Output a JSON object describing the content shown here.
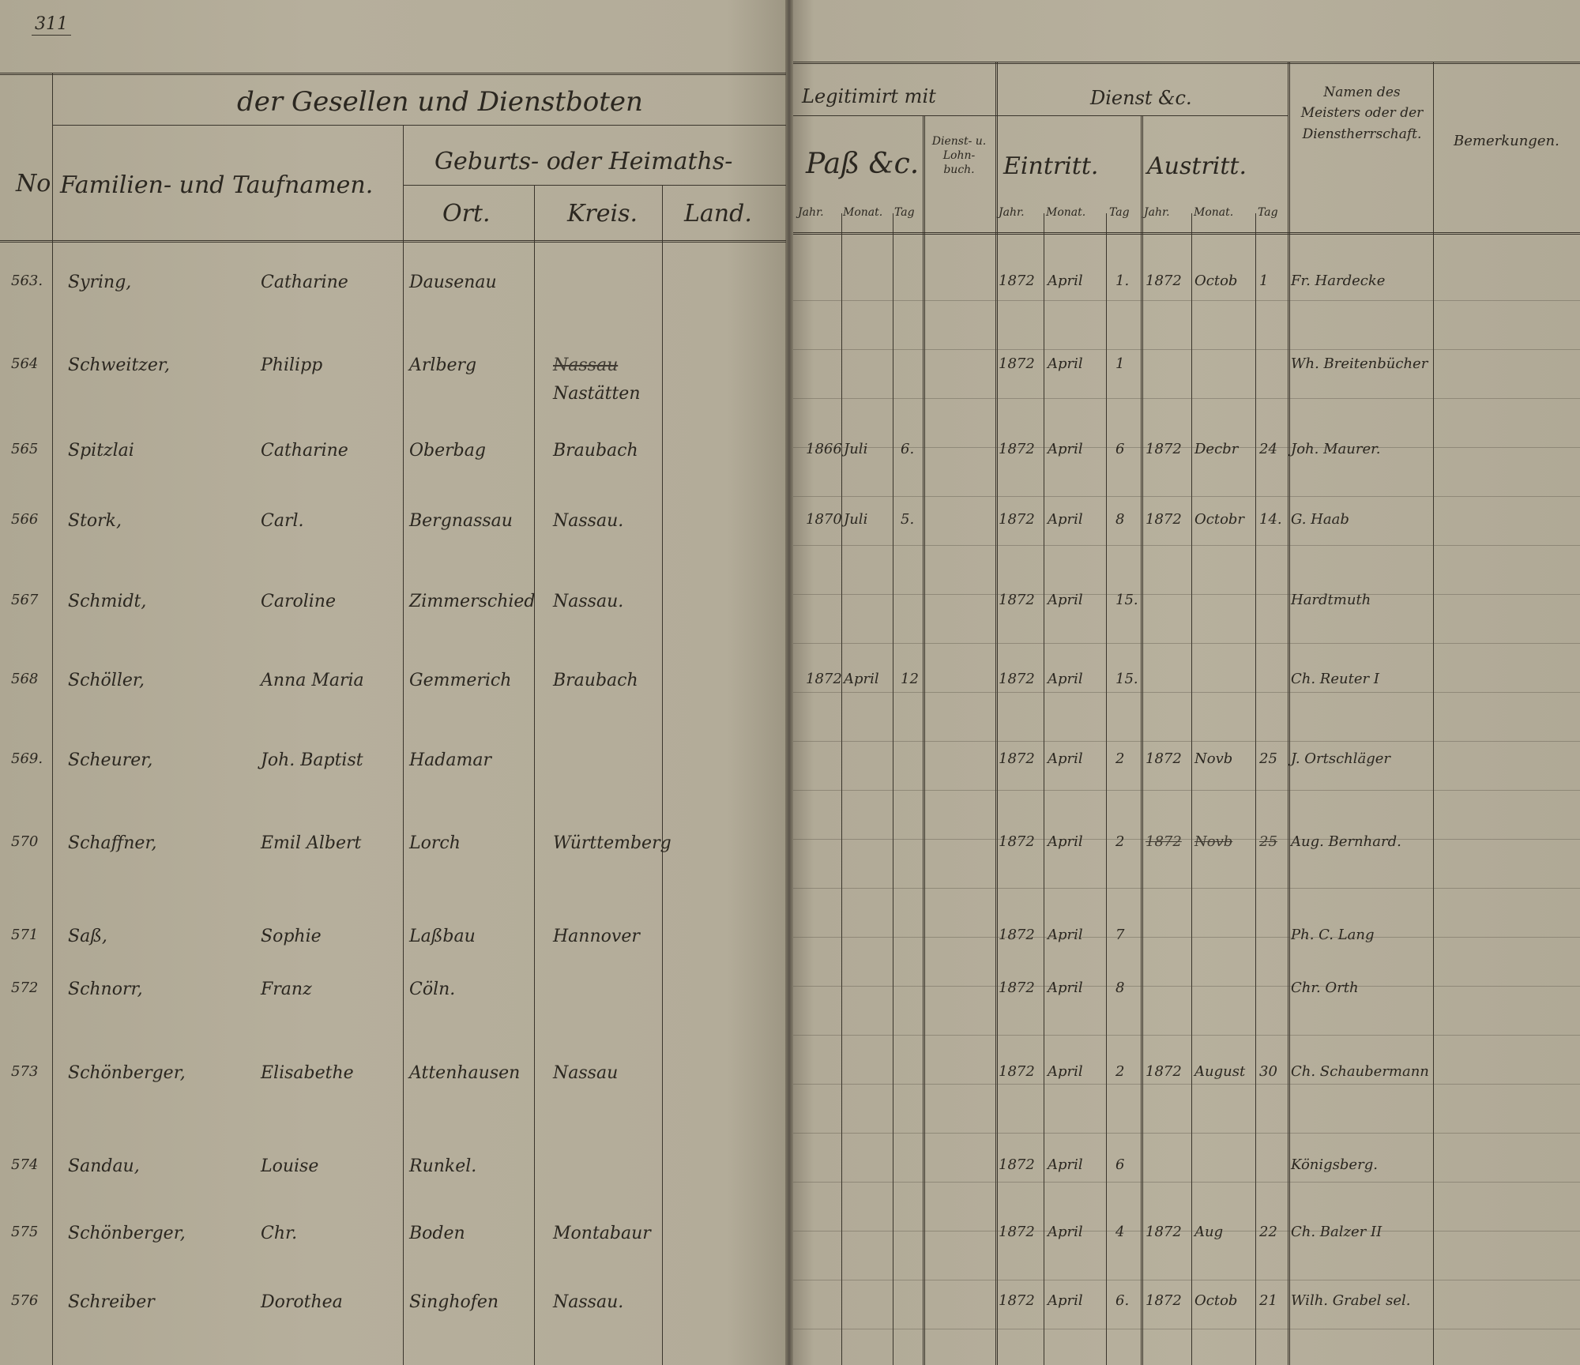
{
  "page_number": "311",
  "header": {
    "left_title": "der Gesellen und Dienstboten",
    "no": "No",
    "names": "Familien- und Taufnamen.",
    "origin_title": "Geburts- oder Heimaths-",
    "ort": "Ort.",
    "kreis": "Kreis.",
    "land": "Land.",
    "legitimirt": "Legitimirt mit",
    "pass": "Paß &c.",
    "dienstbuch": "Dienst- u. Lohn- buch.",
    "dienst": "Dienst &c.",
    "eintritt": "Eintritt.",
    "austritt": "Austritt.",
    "jahr": "Jahr.",
    "monat": "Monat.",
    "tag": "Tag",
    "meister": "Namen des Meisters oder der Dienstherrschaft.",
    "bemerkungen": "Bemerkungen."
  },
  "entries": [
    {
      "no": "563.",
      "surname": "Syring,",
      "given": "Catharine",
      "ort": "Dausenau",
      "kreis": "",
      "kreis_struck": "",
      "pass_jahr": "",
      "pass_monat": "",
      "pass_tag": "",
      "ein_jahr": "1872",
      "ein_monat": "April",
      "ein_tag": "1.",
      "aus_jahr": "1872",
      "aus_monat": "Octob",
      "aus_tag": "1",
      "meister": "Fr. Hardecke"
    },
    {
      "no": "564",
      "surname": "Schweitzer,",
      "given": "Philipp",
      "ort": "Arlberg",
      "kreis": "Nastätten",
      "kreis_struck": "Nassau",
      "pass_jahr": "",
      "pass_monat": "",
      "pass_tag": "",
      "ein_jahr": "1872",
      "ein_monat": "April",
      "ein_tag": "1",
      "aus_jahr": "",
      "aus_monat": "",
      "aus_tag": "",
      "meister": "Wh. Breitenbücher"
    },
    {
      "no": "565",
      "surname": "Spitzlai",
      "given": "Catharine",
      "ort": "Oberbag",
      "kreis": "Braubach",
      "kreis_struck": "",
      "pass_jahr": "1866",
      "pass_monat": "Juli",
      "pass_tag": "6.",
      "ein_jahr": "1872",
      "ein_monat": "April",
      "ein_tag": "6",
      "aus_jahr": "1872",
      "aus_monat": "Decbr",
      "aus_tag": "24",
      "meister": "Joh. Maurer."
    },
    {
      "no": "566",
      "surname": "Stork,",
      "given": "Carl.",
      "ort": "Bergnassau",
      "kreis": "Nassau.",
      "kreis_struck": "",
      "pass_jahr": "1870",
      "pass_monat": "Juli",
      "pass_tag": "5.",
      "ein_jahr": "1872",
      "ein_monat": "April",
      "ein_tag": "8",
      "aus_jahr": "1872",
      "aus_monat": "Octobr",
      "aus_tag": "14.",
      "meister": "G. Haab"
    },
    {
      "no": "567",
      "surname": "Schmidt,",
      "given": "Caroline",
      "ort": "Zimmerschied",
      "kreis": "Nassau.",
      "kreis_struck": "",
      "pass_jahr": "",
      "pass_monat": "",
      "pass_tag": "",
      "ein_jahr": "1872",
      "ein_monat": "April",
      "ein_tag": "15.",
      "aus_jahr": "",
      "aus_monat": "",
      "aus_tag": "",
      "meister": "Hardtmuth"
    },
    {
      "no": "568",
      "surname": "Schöller,",
      "given": "Anna Maria",
      "ort": "Gemmerich",
      "kreis": "Braubach",
      "kreis_struck": "",
      "pass_jahr": "1872",
      "pass_monat": "April",
      "pass_tag": "12",
      "ein_jahr": "1872",
      "ein_monat": "April",
      "ein_tag": "15.",
      "aus_jahr": "",
      "aus_monat": "",
      "aus_tag": "",
      "meister": "Ch. Reuter I"
    },
    {
      "no": "569.",
      "surname": "Scheurer,",
      "given": "Joh. Baptist",
      "ort": "Hadamar",
      "kreis": "",
      "kreis_struck": "",
      "pass_jahr": "",
      "pass_monat": "",
      "pass_tag": "",
      "ein_jahr": "1872",
      "ein_monat": "April",
      "ein_tag": "2",
      "aus_jahr": "1872",
      "aus_monat": "Novb",
      "aus_tag": "25",
      "meister": "J. Ortschläger"
    },
    {
      "no": "570",
      "surname": "Schaffner,",
      "given": "Emil Albert",
      "ort": "Lorch",
      "kreis": "Württemberg",
      "kreis_struck": "",
      "pass_jahr": "",
      "pass_monat": "",
      "pass_tag": "",
      "ein_jahr": "1872",
      "ein_monat": "April",
      "ein_tag": "2",
      "aus_jahr": "1872",
      "aus_monat": "Novb",
      "aus_tag": "25",
      "aus_struck": true,
      "meister": "Aug. Bernhard."
    },
    {
      "no": "571",
      "surname": "Saß,",
      "given": "Sophie",
      "ort": "Laßbau",
      "kreis": "Hannover",
      "kreis_struck": "",
      "pass_jahr": "",
      "pass_monat": "",
      "pass_tag": "",
      "ein_jahr": "1872",
      "ein_monat": "April",
      "ein_tag": "7",
      "aus_jahr": "",
      "aus_monat": "",
      "aus_tag": "",
      "meister": "Ph. C. Lang"
    },
    {
      "no": "572",
      "surname": "Schnorr,",
      "given": "Franz",
      "ort": "Cöln.",
      "kreis": "",
      "kreis_struck": "",
      "pass_jahr": "",
      "pass_monat": "",
      "pass_tag": "",
      "ein_jahr": "1872",
      "ein_monat": "April",
      "ein_tag": "8",
      "aus_jahr": "",
      "aus_monat": "",
      "aus_tag": "",
      "meister": "Chr. Orth"
    },
    {
      "no": "573",
      "surname": "Schönberger,",
      "given": "Elisabethe",
      "ort": "Attenhausen",
      "kreis": "Nassau",
      "kreis_struck": "",
      "pass_jahr": "",
      "pass_monat": "",
      "pass_tag": "",
      "ein_jahr": "1872",
      "ein_monat": "April",
      "ein_tag": "2",
      "aus_jahr": "1872",
      "aus_monat": "August",
      "aus_tag": "30",
      "meister": "Ch. Schaubermann"
    },
    {
      "no": "574",
      "surname": "Sandau,",
      "given": "Louise",
      "ort": "Runkel.",
      "kreis": "",
      "kreis_struck": "",
      "pass_jahr": "",
      "pass_monat": "",
      "pass_tag": "",
      "ein_jahr": "1872",
      "ein_monat": "April",
      "ein_tag": "6",
      "aus_jahr": "",
      "aus_monat": "",
      "aus_tag": "",
      "meister": "Königsberg."
    },
    {
      "no": "575",
      "surname": "Schönberger,",
      "given": "Chr.",
      "ort": "Boden",
      "kreis": "Montabaur",
      "kreis_struck": "",
      "pass_jahr": "",
      "pass_monat": "",
      "pass_tag": "",
      "ein_jahr": "1872",
      "ein_monat": "April",
      "ein_tag": "4",
      "aus_jahr": "1872",
      "aus_monat": "Aug",
      "aus_tag": "22",
      "meister": "Ch. Balzer II"
    },
    {
      "no": "576",
      "surname": "Schreiber",
      "given": "Dorothea",
      "ort": "Singhofen",
      "kreis": "Nassau.",
      "kreis_struck": "",
      "pass_jahr": "",
      "pass_monat": "",
      "pass_tag": "",
      "ein_jahr": "1872",
      "ein_monat": "April",
      "ein_tag": "6.",
      "aus_jahr": "1872",
      "aus_monat": "Octob",
      "aus_tag": "21",
      "meister": "Wilh. Grabel sel."
    }
  ]
}
